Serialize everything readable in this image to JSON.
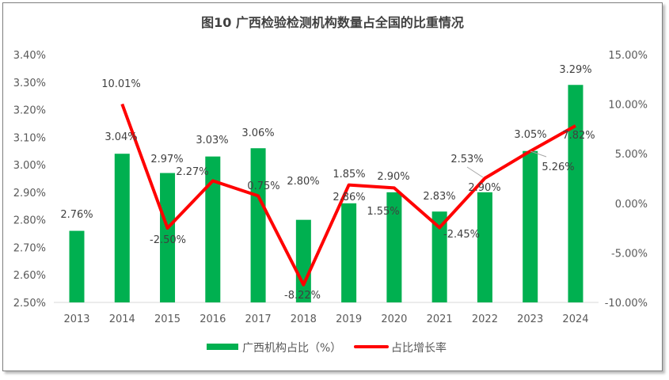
{
  "chart_data": {
    "type": "bar+line",
    "title": "图10 广西检验检测机构数量占全国的比重情况",
    "categories": [
      "2013",
      "2014",
      "2015",
      "2016",
      "2017",
      "2018",
      "2019",
      "2020",
      "2021",
      "2022",
      "2023",
      "2024"
    ],
    "series": [
      {
        "name": "广西机构占比（%）",
        "type": "bar",
        "axis": "left",
        "color": "#00b050",
        "values": [
          2.76,
          3.04,
          2.97,
          3.03,
          3.06,
          2.8,
          2.86,
          2.9,
          2.83,
          2.9,
          3.05,
          3.29
        ],
        "labels": [
          "2.76%",
          "3.04%",
          "2.97%",
          "3.03%",
          "3.06%",
          "2.80%",
          "2.86%",
          "2.90%",
          "2.83%",
          "2.90%",
          "3.05%",
          "3.29%"
        ]
      },
      {
        "name": "占比增长率",
        "type": "line",
        "axis": "right",
        "color": "#ff0000",
        "values": [
          null,
          10.01,
          -2.5,
          2.27,
          0.75,
          -8.22,
          1.85,
          1.55,
          -2.45,
          2.53,
          5.26,
          7.82
        ],
        "labels": [
          "",
          "10.01%",
          "-2.50%",
          "2.27%",
          "0.75%",
          "-8.22%",
          "1.85%",
          "1.55%",
          "-2.45%",
          "2.53%",
          "5.26%",
          "7.82%"
        ]
      }
    ],
    "left_axis": {
      "range": [
        2.5,
        3.4
      ],
      "ticks": [
        "2.50%",
        "2.60%",
        "2.70%",
        "2.80%",
        "2.90%",
        "3.00%",
        "3.10%",
        "3.20%",
        "3.30%",
        "3.40%"
      ]
    },
    "right_axis": {
      "range": [
        -10,
        15
      ],
      "ticks": [
        "-10.00%",
        "-5.00%",
        "0.00%",
        "5.00%",
        "10.00%",
        "15.00%"
      ]
    },
    "grid": false,
    "legend": "bottom"
  }
}
